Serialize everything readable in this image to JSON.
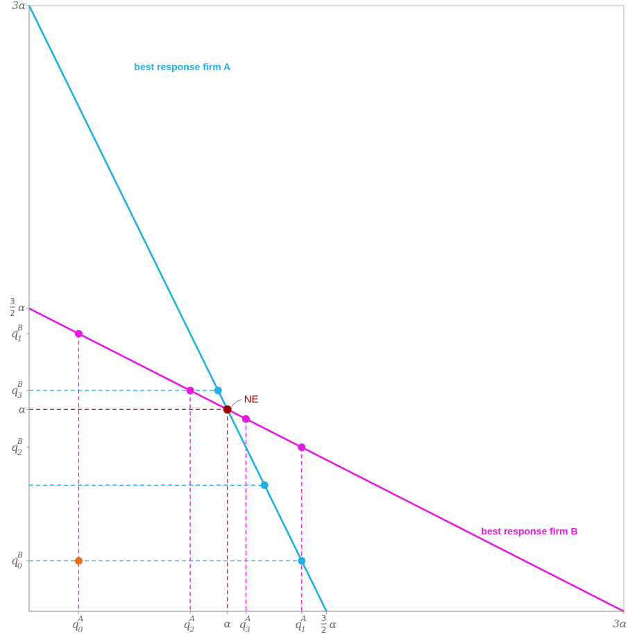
{
  "colors": {
    "firm_a": "#1fb0e6",
    "firm_b": "#e619e6",
    "ne": "#990000",
    "ne_guide": "#cc2222",
    "start": "#ee6f1a",
    "axis": "#999999",
    "label": "#666666"
  },
  "chart_data": {
    "type": "line",
    "title": "",
    "xlabel": "",
    "ylabel": "",
    "xlim": [
      0,
      3
    ],
    "ylim": [
      0,
      3
    ],
    "units_note": "",
    "series": [
      {
        "name": "best response firm A",
        "x": [
          0,
          1.5
        ],
        "y": [
          3,
          0
        ]
      },
      {
        "name": "best response firm B",
        "x": [
          0,
          3
        ],
        "y": [
          1.5,
          0
        ]
      }
    ],
    "points": {
      "q0": {
        "x": 0.25,
        "y": 0.25
      },
      "a_points": [
        {
          "x": 1.375,
          "y": 0.25
        },
        {
          "x": 1.1875,
          "y": 0.625
        },
        {
          "x": 0.953125,
          "y": 1.09375
        }
      ],
      "b_points": [
        {
          "x": 0.25,
          "y": 1.375
        },
        {
          "x": 1.375,
          "y": 0.8125
        },
        {
          "x": 0.8125,
          "y": 1.09375
        },
        {
          "x": 1.09375,
          "y": 0.953125
        }
      ],
      "ne": {
        "x": 1,
        "y": 1,
        "label": "NE"
      }
    },
    "y_ticks": [
      {
        "value": 3,
        "label": "3α"
      },
      {
        "value": 1.5,
        "label": "3/2 α",
        "num": "3",
        "den": "2",
        "sym": "α"
      },
      {
        "value": 1.375,
        "label": "q1B",
        "base": "q",
        "sup": "B",
        "sub": "1"
      },
      {
        "value": 1.09375,
        "label": "q3B",
        "base": "q",
        "sup": "B",
        "sub": "3"
      },
      {
        "value": 1,
        "label": "α"
      },
      {
        "value": 0.8125,
        "label": "q2B",
        "base": "q",
        "sup": "B",
        "sub": "2"
      },
      {
        "value": 0.25,
        "label": "q0B",
        "base": "q",
        "sup": "B",
        "sub": "0"
      }
    ],
    "x_ticks": [
      {
        "value": 0.25,
        "label": "q0A",
        "base": "q",
        "sup": "A",
        "sub": "0"
      },
      {
        "value": 0.8125,
        "label": "q2A",
        "base": "q",
        "sup": "A",
        "sub": "2"
      },
      {
        "value": 1,
        "label": "α"
      },
      {
        "value": 1.09375,
        "label": "q3A",
        "base": "q",
        "sup": "A",
        "sub": "3"
      },
      {
        "value": 1.375,
        "label": "q1A",
        "base": "q",
        "sup": "A",
        "sub": "1"
      },
      {
        "value": 1.5,
        "label": "3/2 α",
        "num": "3",
        "den": "2",
        "sym": "α"
      },
      {
        "value": 3,
        "label": "3α"
      }
    ],
    "annotations": [
      {
        "text": "best response firm A",
        "x": 0.53,
        "y": 2.68,
        "series": 0
      },
      {
        "text": "best response firm B",
        "x": 2.28,
        "y": 0.38,
        "series": 1
      }
    ],
    "grid": false,
    "legend": "none"
  }
}
